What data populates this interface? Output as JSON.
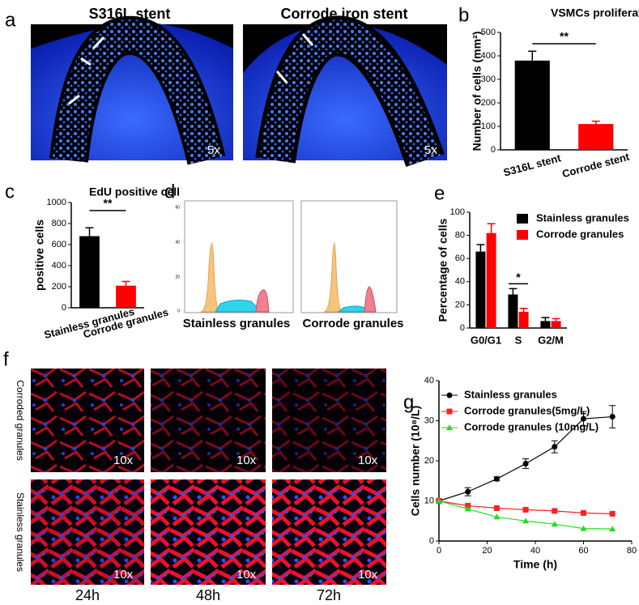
{
  "figure": {
    "letters": [
      "a",
      "b",
      "c",
      "d",
      "e",
      "f",
      "g"
    ],
    "a_titles": [
      "S316L stent",
      "Corrode iron stent"
    ],
    "a_magnification": "5x",
    "d_labels": [
      "Stainless granules",
      "Corrode granules"
    ],
    "d_yticks": [
      60,
      40,
      20,
      0
    ],
    "f_rows": [
      "Corroded granules",
      "Stainless granules"
    ],
    "f_cols": [
      "24h",
      "48h",
      "72h"
    ],
    "f_magnification": "10x"
  },
  "chart_data": [
    {
      "type": "bar",
      "title": "VSMCs proliferation",
      "ylabel": "Number of cells (mm²)",
      "categories": [
        "S316L stent",
        "Corrode stent"
      ],
      "values": [
        380,
        110
      ],
      "errors": [
        40,
        12
      ],
      "colors": [
        "#000000",
        "#ff0000"
      ],
      "ylim": [
        0,
        500
      ],
      "yticks": [
        0,
        100,
        200,
        300,
        400,
        500
      ],
      "annotations": [
        "**"
      ]
    },
    {
      "type": "bar",
      "title": "EdU positive cell",
      "ylabel": "positive cells",
      "categories": [
        "Stainless granules",
        "Corrode granules"
      ],
      "values": [
        680,
        210
      ],
      "errors": [
        80,
        40
      ],
      "colors": [
        "#000000",
        "#ff0000"
      ],
      "ylim": [
        0,
        1000
      ],
      "yticks": [
        0,
        200,
        400,
        600,
        800,
        1000
      ],
      "annotations": [
        "**"
      ]
    },
    {
      "type": "grouped_bar",
      "ylabel": "Percentage of cells",
      "categories": [
        "G0/G1",
        "S",
        "G2/M"
      ],
      "series": [
        {
          "name": "Stainless granules",
          "color": "#000000",
          "values": [
            66,
            29,
            6
          ],
          "errors": [
            6,
            5,
            3
          ]
        },
        {
          "name": "Corrode granules",
          "color": "#ff0000",
          "values": [
            82,
            14,
            6
          ],
          "errors": [
            8,
            3,
            2
          ]
        }
      ],
      "ylim": [
        0,
        100
      ],
      "yticks": [
        0,
        20,
        40,
        60,
        80,
        100
      ],
      "annotations": [
        "*"
      ]
    },
    {
      "type": "line",
      "xlabel": "Time (h)",
      "ylabel": "Cells number (10⁸/L)",
      "x": [
        0,
        12,
        24,
        36,
        48,
        60,
        72
      ],
      "series": [
        {
          "name": "Stainless granules",
          "color": "#000000",
          "marker": "circle",
          "values": [
            10,
            12.3,
            15.5,
            19.3,
            23.5,
            30.5,
            31
          ],
          "errors": [
            0.5,
            1,
            0.5,
            1.2,
            1.5,
            1.8,
            2.8
          ]
        },
        {
          "name": "Corrode granules(5mg/L)",
          "color": "#ff2020",
          "marker": "square",
          "values": [
            10,
            8.8,
            8.2,
            7.8,
            7.5,
            7,
            6.8
          ]
        },
        {
          "name": "Corrode granules (10mg/L)",
          "color": "#22dd22",
          "marker": "triangle",
          "values": [
            10,
            8,
            6,
            5,
            4.2,
            3.1,
            3
          ]
        }
      ],
      "xlim": [
        0,
        80
      ],
      "xticks": [
        0,
        20,
        40,
        60,
        80
      ],
      "ylim": [
        0,
        40
      ],
      "yticks": [
        0,
        10,
        20,
        30,
        40
      ]
    }
  ]
}
